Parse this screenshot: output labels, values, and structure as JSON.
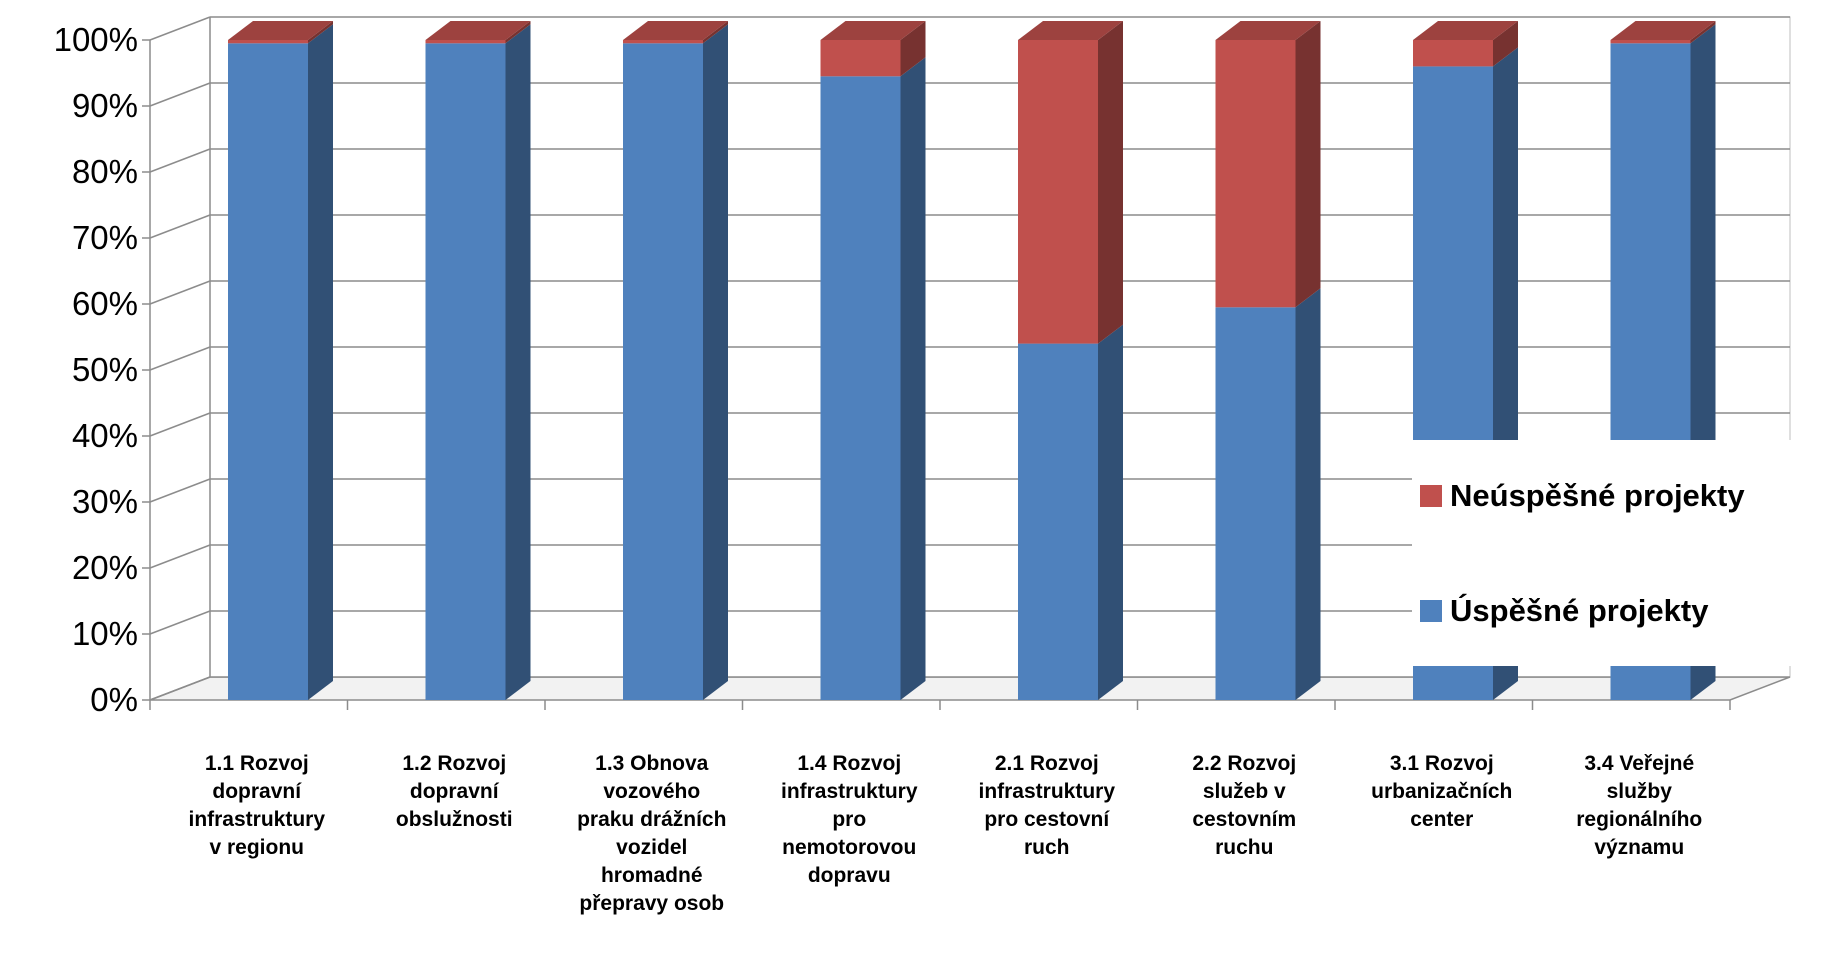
{
  "chart_data": {
    "type": "bar",
    "stacked": true,
    "percent": true,
    "three_d": true,
    "categories": [
      [
        "1.1 Rozvoj",
        "dopravní",
        "infrastruktury",
        "v regionu"
      ],
      [
        "1.2 Rozvoj",
        "dopravní",
        "obslužnosti"
      ],
      [
        "1.3 Obnova",
        "vozového",
        "praku drážních",
        "vozidel",
        "hromadné",
        "přepravy osob"
      ],
      [
        "1.4 Rozvoj",
        "infrastruktury",
        "pro",
        "nemotorovou",
        "dopravu"
      ],
      [
        "2.1 Rozvoj",
        "infrastruktury",
        "pro cestovní",
        "ruch"
      ],
      [
        "2.2 Rozvoj",
        "služeb v",
        "cestovním",
        "ruchu"
      ],
      [
        "3.1 Rozvoj",
        "urbanizačních",
        "center"
      ],
      [
        "3.4 Veřejné",
        "služby",
        "regionálního",
        "významu"
      ]
    ],
    "series": [
      {
        "name": "Úspěšné projekty",
        "color": "#4f81bd",
        "values": [
          99.5,
          99.5,
          99.5,
          94.5,
          54,
          59.5,
          96,
          99.5
        ]
      },
      {
        "name": "Neúspěšné projekty",
        "color": "#c0504d",
        "values": [
          0.5,
          0.5,
          0.5,
          5.5,
          46,
          40.5,
          4,
          0.5
        ]
      }
    ],
    "yticks": [
      "0%",
      "10%",
      "20%",
      "30%",
      "40%",
      "50%",
      "60%",
      "70%",
      "80%",
      "90%",
      "100%"
    ],
    "ylim": [
      0,
      100
    ],
    "grid": true,
    "legend_position": "right",
    "legend_order": [
      "Neúspěšné projekty",
      "Úspěšné projekty"
    ]
  }
}
